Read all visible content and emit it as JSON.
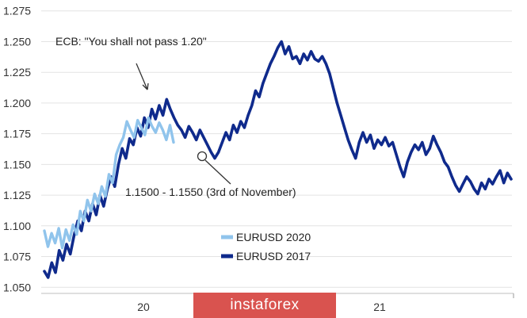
{
  "chart_data": {
    "type": "line",
    "title": "",
    "xlabel": "",
    "ylabel": "",
    "ylim": [
      1.045,
      1.28
    ],
    "yticks": [
      "1.275",
      "1.250",
      "1.225",
      "1.200",
      "1.175",
      "1.150",
      "1.125",
      "1.100",
      "1.075",
      "1.050"
    ],
    "xticks": [
      "20",
      "21"
    ],
    "grid": "horizontal",
    "legend_position": "bottom-center",
    "series": [
      {
        "name": "EURUSD 2020",
        "color": "#90c4ec",
        "values": [
          1.096,
          1.083,
          1.094,
          1.086,
          1.098,
          1.082,
          1.097,
          1.088,
          1.101,
          1.093,
          1.112,
          1.104,
          1.121,
          1.112,
          1.126,
          1.118,
          1.132,
          1.124,
          1.142,
          1.135,
          1.158,
          1.166,
          1.172,
          1.185,
          1.178,
          1.172,
          1.186,
          1.18,
          1.174,
          1.188,
          1.181,
          1.176,
          1.184,
          1.178,
          1.17,
          1.182,
          1.168
        ]
      },
      {
        "name": "EURUSD 2017",
        "color": "#0f2a8c",
        "values": [
          1.063,
          1.058,
          1.07,
          1.062,
          1.08,
          1.072,
          1.085,
          1.077,
          1.092,
          1.104,
          1.096,
          1.112,
          1.104,
          1.118,
          1.109,
          1.125,
          1.116,
          1.13,
          1.14,
          1.132,
          1.15,
          1.163,
          1.155,
          1.171,
          1.166,
          1.18,
          1.173,
          1.188,
          1.18,
          1.195,
          1.187,
          1.198,
          1.19,
          1.203,
          1.195,
          1.188,
          1.182,
          1.178,
          1.172,
          1.181,
          1.176,
          1.17,
          1.178,
          1.172,
          1.166,
          1.16,
          1.155,
          1.16,
          1.168,
          1.176,
          1.17,
          1.182,
          1.176,
          1.185,
          1.18,
          1.19,
          1.198,
          1.21,
          1.205,
          1.216,
          1.224,
          1.232,
          1.238,
          1.245,
          1.25,
          1.24,
          1.246,
          1.236,
          1.238,
          1.232,
          1.24,
          1.235,
          1.242,
          1.236,
          1.234,
          1.238,
          1.232,
          1.224,
          1.212,
          1.2,
          1.19,
          1.18,
          1.17,
          1.162,
          1.155,
          1.168,
          1.176,
          1.168,
          1.174,
          1.163,
          1.17,
          1.166,
          1.172,
          1.165,
          1.168,
          1.158,
          1.148,
          1.14,
          1.152,
          1.16,
          1.166,
          1.162,
          1.168,
          1.158,
          1.163,
          1.173,
          1.166,
          1.16,
          1.152,
          1.148,
          1.14,
          1.133,
          1.128,
          1.134,
          1.14,
          1.136,
          1.13,
          1.126,
          1.135,
          1.13,
          1.138,
          1.134,
          1.14,
          1.145,
          1.135,
          1.143,
          1.138
        ]
      }
    ],
    "annotations": [
      {
        "text": "ECB: \"You shall not pass 1.20\""
      },
      {
        "text": "1.1500 - 1.1550 (3rd of November)"
      }
    ]
  },
  "watermark": {
    "text": "instaforex"
  }
}
